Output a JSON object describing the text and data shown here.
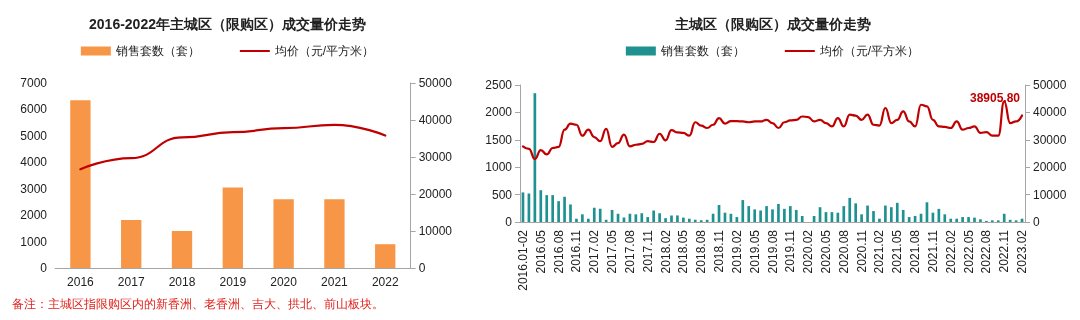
{
  "chart_data": [
    {
      "type": "bar",
      "title": "2016-2022年主城区（限购区）成交量价走势",
      "categories": [
        "2016",
        "2017",
        "2018",
        "2019",
        "2020",
        "2021",
        "2022"
      ],
      "series": [
        {
          "name": "销售套数（套）",
          "color": "#f79646",
          "values": [
            6350,
            1820,
            1400,
            3050,
            2600,
            2600,
            900
          ]
        },
        {
          "name": "均价（元/平方米）",
          "type": "line",
          "axis": "y2",
          "color": "#c00000",
          "values": [
            26700,
            29700,
            35300,
            36700,
            37800,
            38700,
            35800
          ]
        }
      ],
      "ylim": [
        0,
        7000
      ],
      "yticks": [
        0,
        1000,
        2000,
        3000,
        4000,
        5000,
        6000,
        7000
      ],
      "y2lim": [
        0,
        50000
      ],
      "y2ticks": [
        0,
        10000,
        20000,
        30000,
        40000,
        50000
      ],
      "legend": "top",
      "grid": false,
      "marker": "none",
      "line_style": "solid",
      "annotations": [
        "备注：主城区指限购区内的新香洲、老香洲、吉大、拱北、前山板块。"
      ]
    },
    {
      "type": "bar",
      "title": "主城区（限购区）成交量价走势",
      "categories": [
        "2016.01-02",
        null,
        null,
        "2016.05",
        null,
        null,
        "2016.08",
        null,
        null,
        "2016.11",
        null,
        null,
        "2017.02",
        null,
        null,
        "2017.05",
        null,
        null,
        "2017.08",
        null,
        null,
        "2017.11",
        null,
        null,
        "2018.02",
        null,
        null,
        "2018.05",
        null,
        null,
        "2018.08",
        null,
        null,
        "2018.11",
        null,
        null,
        "2019.02",
        null,
        null,
        "2019.05",
        null,
        null,
        "2019.08",
        null,
        null,
        "2019.11",
        null,
        null,
        "2020.02",
        null,
        null,
        "2020.05",
        null,
        null,
        "2020.08",
        null,
        null,
        "2020.11",
        null,
        null,
        "2021.02",
        null,
        null,
        "2021.05",
        null,
        null,
        "2021.08",
        null,
        null,
        "2021.11",
        null,
        null,
        "2022.02",
        null,
        null,
        "2022.05",
        null,
        null,
        "2022.08",
        null,
        null,
        "2022.11",
        null,
        null,
        "2023.02"
      ],
      "series": [
        {
          "name": "销售套数（套）",
          "color": "#1f9190",
          "values": [
            540,
            520,
            2350,
            580,
            490,
            490,
            380,
            460,
            320,
            60,
            140,
            60,
            260,
            240,
            40,
            220,
            150,
            80,
            150,
            140,
            160,
            90,
            210,
            160,
            70,
            120,
            120,
            80,
            60,
            40,
            30,
            40,
            150,
            310,
            170,
            150,
            90,
            400,
            290,
            230,
            210,
            290,
            230,
            330,
            240,
            290,
            220,
            110,
            0,
            110,
            270,
            180,
            180,
            170,
            290,
            440,
            340,
            140,
            300,
            200,
            60,
            300,
            270,
            350,
            220,
            90,
            110,
            150,
            360,
            170,
            240,
            140,
            60,
            60,
            90,
            90,
            80,
            50,
            20,
            30,
            30,
            150,
            40,
            30,
            60
          ]
        },
        {
          "name": "均价（元/平方米）",
          "type": "line",
          "axis": "y2",
          "color": "#c00000",
          "values": [
            27600,
            26700,
            23000,
            26200,
            24700,
            27000,
            27400,
            33700,
            35900,
            35500,
            31500,
            33700,
            31000,
            29500,
            34000,
            27400,
            28800,
            31900,
            27600,
            28200,
            28500,
            29500,
            29200,
            32200,
            29800,
            33500,
            32700,
            32500,
            31500,
            36400,
            35200,
            34300,
            35500,
            37900,
            35900,
            36800,
            36800,
            36700,
            36400,
            36700,
            36700,
            37300,
            36100,
            34300,
            36400,
            37100,
            37300,
            38500,
            38300,
            36700,
            37300,
            36100,
            34900,
            37900,
            34900,
            39200,
            38800,
            37300,
            39200,
            35500,
            35200,
            41600,
            36100,
            37300,
            40400,
            36700,
            34900,
            42800,
            42200,
            37300,
            34900,
            34700,
            34300,
            36700,
            33700,
            34300,
            34900,
            32500,
            32800,
            31500,
            31500,
            44000,
            36100,
            36700,
            38905.8
          ],
          "value_labels": [
            null,
            null,
            null,
            null,
            null,
            null,
            null,
            null,
            null,
            null,
            null,
            null,
            null,
            null,
            null,
            null,
            null,
            null,
            null,
            null,
            null,
            null,
            null,
            null,
            null,
            null,
            null,
            null,
            null,
            null,
            null,
            null,
            null,
            null,
            null,
            null,
            null,
            null,
            null,
            null,
            null,
            null,
            null,
            null,
            null,
            null,
            null,
            null,
            null,
            null,
            null,
            null,
            null,
            null,
            null,
            null,
            null,
            null,
            null,
            null,
            null,
            null,
            null,
            null,
            null,
            null,
            null,
            null,
            null,
            null,
            null,
            null,
            null,
            null,
            null,
            null,
            null,
            null,
            null,
            null,
            null,
            null,
            null,
            null,
            "38905.80"
          ]
        }
      ],
      "ylim": [
        0,
        2500
      ],
      "yticks": [
        0,
        500,
        1000,
        1500,
        2000,
        2500
      ],
      "y2lim": [
        0,
        50000
      ],
      "y2ticks": [
        0,
        10000,
        20000,
        30000,
        40000,
        50000
      ],
      "legend": "top",
      "grid": false,
      "marker": "none",
      "line_style": "solid"
    }
  ]
}
